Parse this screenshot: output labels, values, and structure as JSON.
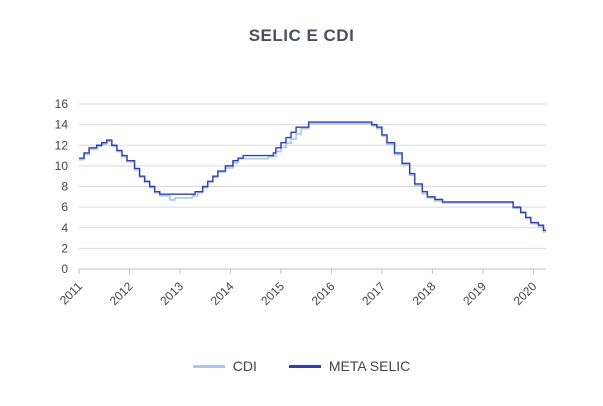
{
  "chart_data": {
    "type": "line",
    "title": "SELIC E CDI",
    "xlabel": "",
    "ylabel": "",
    "xlim": [
      2011.0,
      2020.25
    ],
    "ylim": [
      0,
      16
    ],
    "yticks": [
      0,
      2,
      4,
      6,
      8,
      10,
      12,
      14,
      16
    ],
    "xticks": [
      "2011",
      "2012",
      "2013",
      "2014",
      "2015",
      "2016",
      "2017",
      "2018",
      "2019",
      "2020"
    ],
    "grid": true,
    "legend_position": "bottom",
    "series": [
      {
        "name": "CDI",
        "color": "#a9c8ee",
        "points": [
          [
            2011.0,
            10.6
          ],
          [
            2011.1,
            11.1
          ],
          [
            2011.2,
            11.6
          ],
          [
            2011.35,
            11.9
          ],
          [
            2011.45,
            12.1
          ],
          [
            2011.55,
            12.4
          ],
          [
            2011.65,
            11.9
          ],
          [
            2011.75,
            11.4
          ],
          [
            2011.85,
            10.9
          ],
          [
            2011.95,
            10.4
          ],
          [
            2012.1,
            9.6
          ],
          [
            2012.2,
            8.9
          ],
          [
            2012.3,
            8.4
          ],
          [
            2012.4,
            7.9
          ],
          [
            2012.5,
            7.4
          ],
          [
            2012.6,
            7.1
          ],
          [
            2012.8,
            6.7
          ],
          [
            2012.9,
            6.9
          ],
          [
            2013.25,
            7.1
          ],
          [
            2013.35,
            7.4
          ],
          [
            2013.45,
            7.9
          ],
          [
            2013.55,
            8.4
          ],
          [
            2013.65,
            8.9
          ],
          [
            2013.75,
            9.4
          ],
          [
            2013.9,
            9.8
          ],
          [
            2014.05,
            10.3
          ],
          [
            2014.15,
            10.7
          ],
          [
            2014.75,
            10.9
          ],
          [
            2014.9,
            11.4
          ],
          [
            2015.0,
            11.8
          ],
          [
            2015.1,
            12.2
          ],
          [
            2015.2,
            12.6
          ],
          [
            2015.3,
            13.1
          ],
          [
            2015.4,
            13.6
          ],
          [
            2015.55,
            14.1
          ],
          [
            2016.8,
            13.9
          ],
          [
            2016.9,
            13.6
          ],
          [
            2017.0,
            12.9
          ],
          [
            2017.1,
            12.1
          ],
          [
            2017.25,
            11.1
          ],
          [
            2017.4,
            10.1
          ],
          [
            2017.55,
            9.1
          ],
          [
            2017.65,
            8.1
          ],
          [
            2017.8,
            7.3
          ],
          [
            2017.9,
            6.9
          ],
          [
            2018.05,
            6.6
          ],
          [
            2018.2,
            6.4
          ],
          [
            2019.55,
            6.4
          ],
          [
            2019.6,
            5.9
          ],
          [
            2019.75,
            5.4
          ],
          [
            2019.85,
            4.9
          ],
          [
            2019.95,
            4.4
          ],
          [
            2020.1,
            4.1
          ],
          [
            2020.2,
            3.6
          ],
          [
            2020.25,
            3.6
          ]
        ]
      },
      {
        "name": "META SELIC",
        "color": "#2e3fb8",
        "points": [
          [
            2011.0,
            10.75
          ],
          [
            2011.1,
            11.25
          ],
          [
            2011.2,
            11.75
          ],
          [
            2011.35,
            12.0
          ],
          [
            2011.45,
            12.25
          ],
          [
            2011.55,
            12.5
          ],
          [
            2011.65,
            12.0
          ],
          [
            2011.75,
            11.5
          ],
          [
            2011.85,
            11.0
          ],
          [
            2011.95,
            10.5
          ],
          [
            2012.1,
            9.75
          ],
          [
            2012.2,
            9.0
          ],
          [
            2012.3,
            8.5
          ],
          [
            2012.4,
            8.0
          ],
          [
            2012.5,
            7.5
          ],
          [
            2012.6,
            7.25
          ],
          [
            2013.3,
            7.5
          ],
          [
            2013.45,
            8.0
          ],
          [
            2013.55,
            8.5
          ],
          [
            2013.65,
            9.0
          ],
          [
            2013.75,
            9.5
          ],
          [
            2013.9,
            10.0
          ],
          [
            2014.05,
            10.5
          ],
          [
            2014.15,
            10.75
          ],
          [
            2014.25,
            11.0
          ],
          [
            2014.85,
            11.25
          ],
          [
            2014.9,
            11.75
          ],
          [
            2015.0,
            12.25
          ],
          [
            2015.1,
            12.75
          ],
          [
            2015.2,
            13.25
          ],
          [
            2015.3,
            13.75
          ],
          [
            2015.55,
            14.25
          ],
          [
            2016.8,
            14.0
          ],
          [
            2016.9,
            13.75
          ],
          [
            2017.0,
            13.0
          ],
          [
            2017.1,
            12.25
          ],
          [
            2017.25,
            11.25
          ],
          [
            2017.4,
            10.25
          ],
          [
            2017.55,
            9.25
          ],
          [
            2017.65,
            8.25
          ],
          [
            2017.8,
            7.5
          ],
          [
            2017.9,
            7.0
          ],
          [
            2018.05,
            6.75
          ],
          [
            2018.2,
            6.5
          ],
          [
            2019.55,
            6.5
          ],
          [
            2019.6,
            6.0
          ],
          [
            2019.75,
            5.5
          ],
          [
            2019.85,
            5.0
          ],
          [
            2019.95,
            4.5
          ],
          [
            2020.1,
            4.25
          ],
          [
            2020.2,
            3.75
          ],
          [
            2020.25,
            3.75
          ]
        ]
      }
    ]
  }
}
